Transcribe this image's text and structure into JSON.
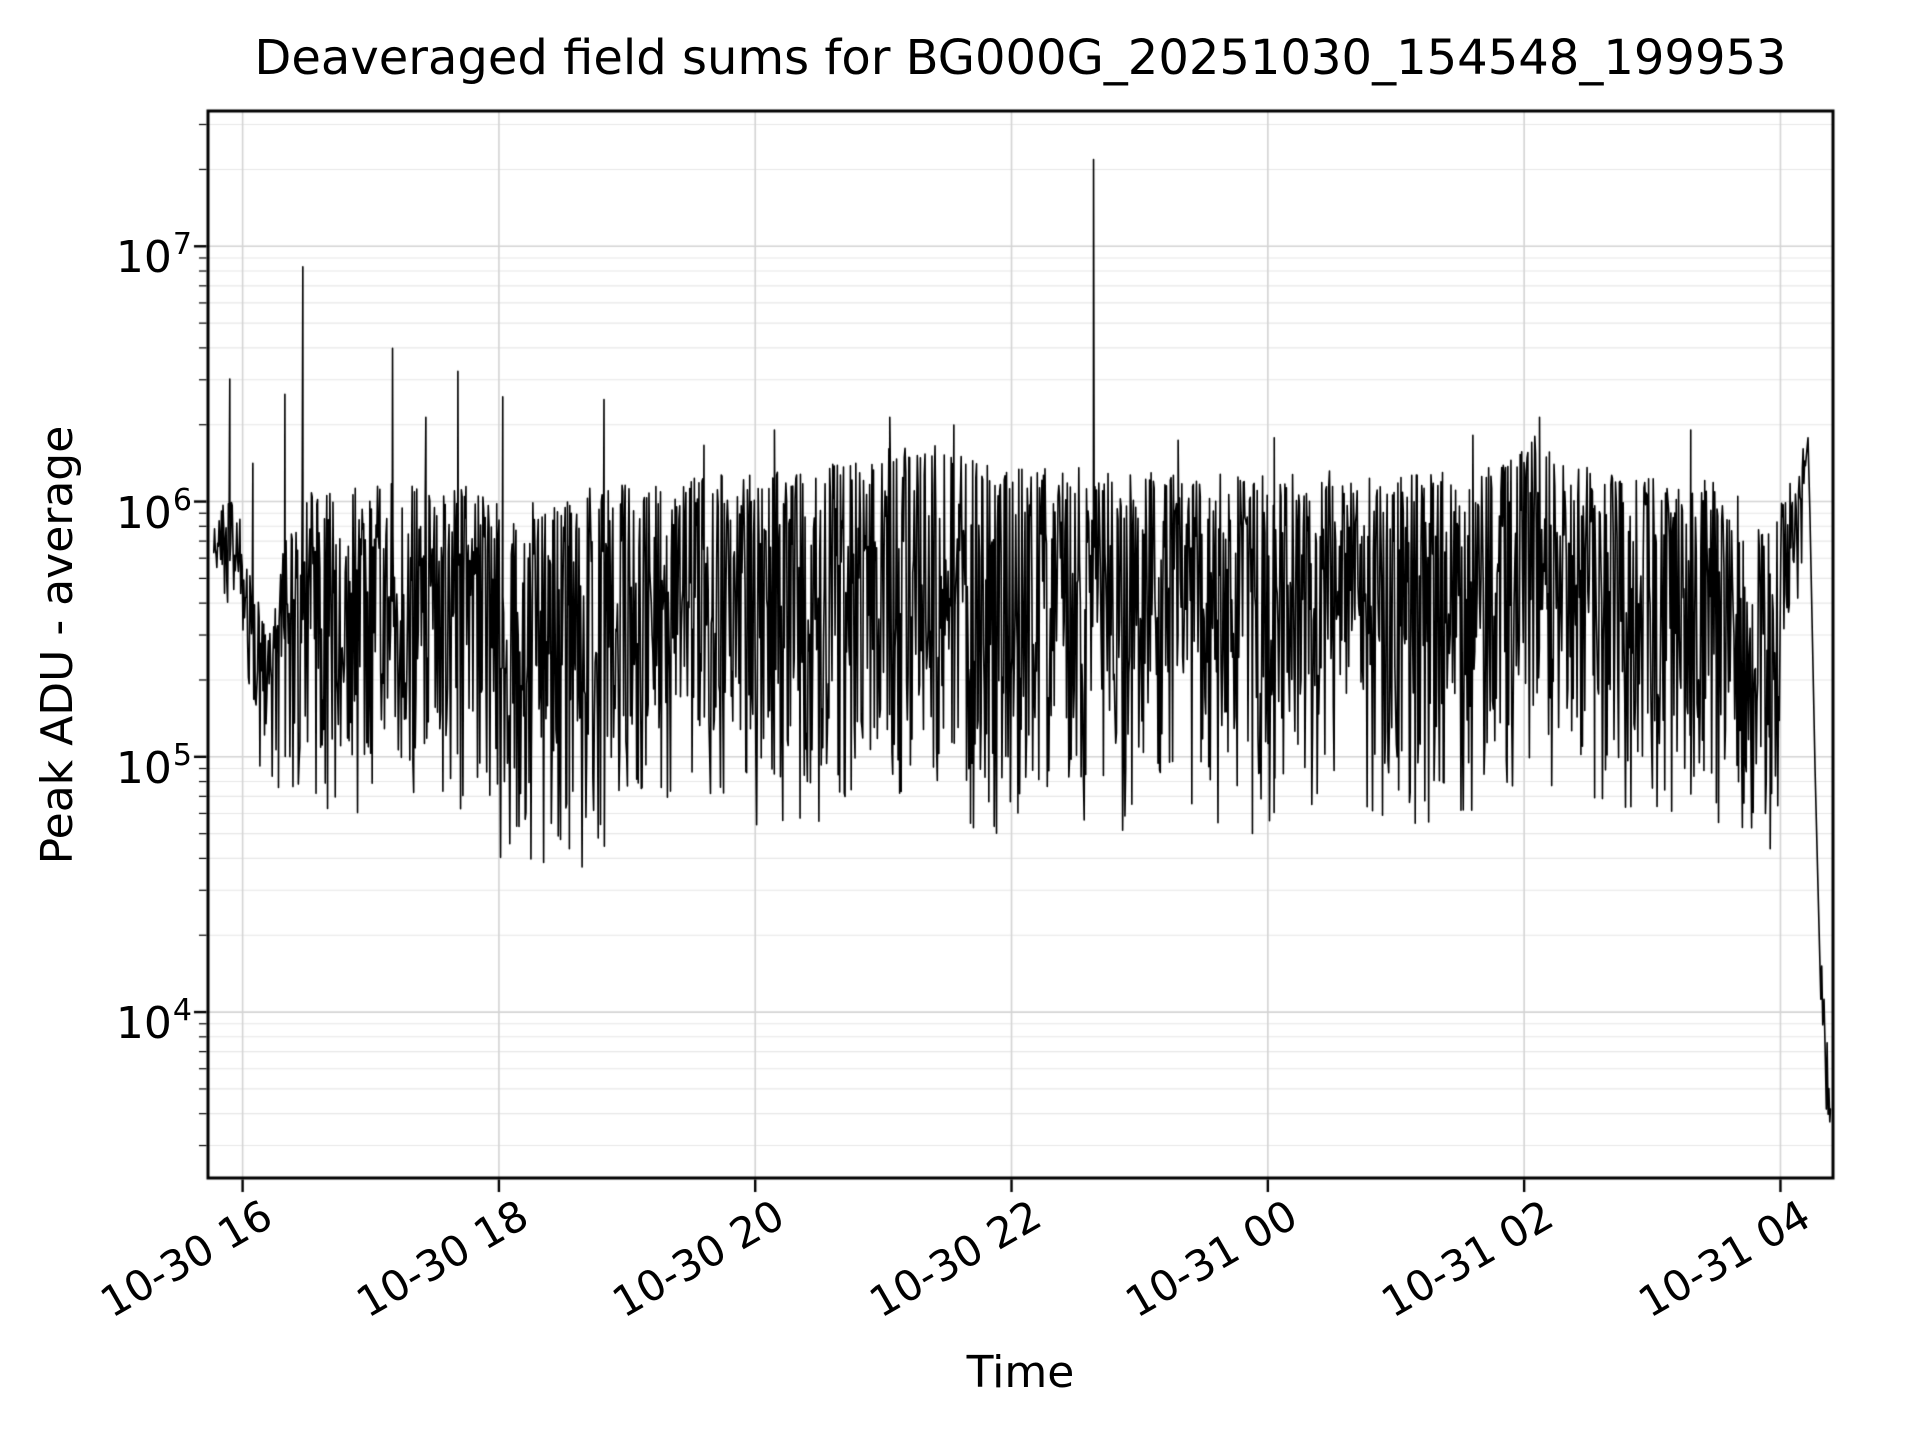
{
  "chart_data": {
    "type": "line",
    "title": "Deaveraged field sums for BG000G_20251030_154548_199953",
    "xlabel": "Time",
    "ylabel": "Peak ADU - average",
    "legend": null,
    "grid": {
      "show": "both",
      "major_color": "#d4d4d4",
      "minor_color": "#e7e7e7"
    },
    "colors": {
      "line": "#000000",
      "spine": "#000000",
      "background": "#ffffff",
      "text": "#000000"
    },
    "x_axis": {
      "kind": "datetime-hours",
      "t_min": 15.73,
      "t_max": 28.41,
      "tick_t": [
        16,
        18,
        20,
        22,
        24,
        26,
        28
      ],
      "tick_labels": [
        "10-30 16",
        "10-30 18",
        "10-30 20",
        "10-30 22",
        "10-31 00",
        "10-31 02",
        "10-31 04"
      ]
    },
    "y_axis": {
      "kind": "log",
      "log_min": 3.35,
      "log_max": 7.53,
      "tick_exponents": [
        7,
        6,
        5,
        4
      ],
      "tick_label_base": "10"
    },
    "series": {
      "name": "deaveraged-field-sum",
      "color": "#000000",
      "line_width": 1.6,
      "start": [
        15.775,
        5.8
      ],
      "envelope": [
        [
          15.775,
          5.6,
          5.9
        ],
        [
          15.86,
          5.68,
          6.0
        ],
        [
          15.95,
          5.55,
          6.08
        ],
        [
          16.02,
          5.25,
          5.8
        ],
        [
          16.12,
          5.08,
          5.6
        ],
        [
          16.24,
          5.02,
          5.55
        ],
        [
          16.33,
          5.0,
          5.9
        ],
        [
          16.45,
          4.97,
          6.03
        ],
        [
          16.7,
          4.96,
          6.04
        ],
        [
          17.0,
          4.95,
          6.05
        ],
        [
          17.4,
          4.98,
          6.08
        ],
        [
          17.8,
          4.88,
          6.03
        ],
        [
          18.1,
          4.72,
          5.98
        ],
        [
          18.45,
          4.64,
          5.98
        ],
        [
          18.75,
          4.78,
          6.04
        ],
        [
          19.1,
          4.88,
          6.08
        ],
        [
          19.5,
          4.97,
          6.1
        ],
        [
          20.0,
          4.88,
          6.1
        ],
        [
          20.5,
          4.92,
          6.14
        ],
        [
          21.0,
          5.0,
          6.2
        ],
        [
          21.45,
          4.96,
          6.22
        ],
        [
          21.8,
          4.86,
          6.14
        ],
        [
          22.3,
          4.94,
          6.13
        ],
        [
          22.8,
          4.9,
          6.1
        ],
        [
          23.3,
          4.95,
          6.1
        ],
        [
          23.8,
          4.88,
          6.09
        ],
        [
          24.3,
          4.92,
          6.1
        ],
        [
          24.8,
          4.94,
          6.1
        ],
        [
          25.3,
          4.9,
          6.1
        ],
        [
          25.8,
          4.98,
          6.13
        ],
        [
          26.1,
          5.15,
          6.28
        ],
        [
          26.35,
          5.02,
          6.15
        ],
        [
          26.7,
          4.95,
          6.1
        ],
        [
          27.2,
          4.98,
          6.08
        ],
        [
          27.6,
          4.88,
          6.04
        ],
        [
          27.9,
          4.7,
          5.92
        ],
        [
          28.05,
          5.2,
          6.02
        ],
        [
          28.2,
          5.9,
          6.25
        ]
      ],
      "spikes": [
        [
          15.9,
          6.48
        ],
        [
          16.08,
          6.15
        ],
        [
          16.33,
          6.42
        ],
        [
          16.47,
          6.92
        ],
        [
          17.17,
          6.6
        ],
        [
          17.43,
          6.33
        ],
        [
          17.68,
          6.51
        ],
        [
          18.03,
          6.41
        ],
        [
          18.82,
          6.4
        ],
        [
          19.6,
          6.22
        ],
        [
          20.15,
          6.28
        ],
        [
          21.05,
          6.33
        ],
        [
          21.55,
          6.3
        ],
        [
          22.64,
          7.34
        ],
        [
          23.3,
          6.24
        ],
        [
          24.05,
          6.25
        ],
        [
          25.6,
          6.26
        ],
        [
          26.12,
          6.33
        ],
        [
          27.3,
          6.28
        ]
      ],
      "dips": [
        [
          16.28,
          4.88
        ],
        [
          18.25,
          4.6
        ],
        [
          18.55,
          4.64
        ],
        [
          20.35,
          4.76
        ],
        [
          21.68,
          4.74
        ],
        [
          22.05,
          4.78
        ],
        [
          23.88,
          4.7
        ],
        [
          25.15,
          4.74
        ],
        [
          26.55,
          4.84
        ],
        [
          27.5,
          4.82
        ],
        [
          27.92,
          4.64
        ]
      ],
      "end_segment": [
        [
          28.215,
          6.25
        ],
        [
          28.23,
          5.95
        ],
        [
          28.25,
          5.45
        ],
        [
          28.27,
          4.95
        ],
        [
          28.29,
          4.55
        ],
        [
          28.305,
          4.25
        ],
        [
          28.315,
          4.05
        ],
        [
          28.322,
          4.18
        ],
        [
          28.33,
          3.95
        ],
        [
          28.34,
          4.05
        ],
        [
          28.35,
          3.82
        ],
        [
          28.358,
          3.62
        ],
        [
          28.364,
          3.88
        ],
        [
          28.372,
          3.6
        ],
        [
          28.378,
          3.7
        ],
        [
          28.385,
          3.57
        ],
        [
          28.39,
          3.62
        ]
      ],
      "noise": {
        "seed": 1337,
        "dt": 0.006,
        "exponent": 1.4,
        "deep_prob": 0.05,
        "deep_extra": 0.18,
        "jitter": 0.05
      }
    }
  }
}
